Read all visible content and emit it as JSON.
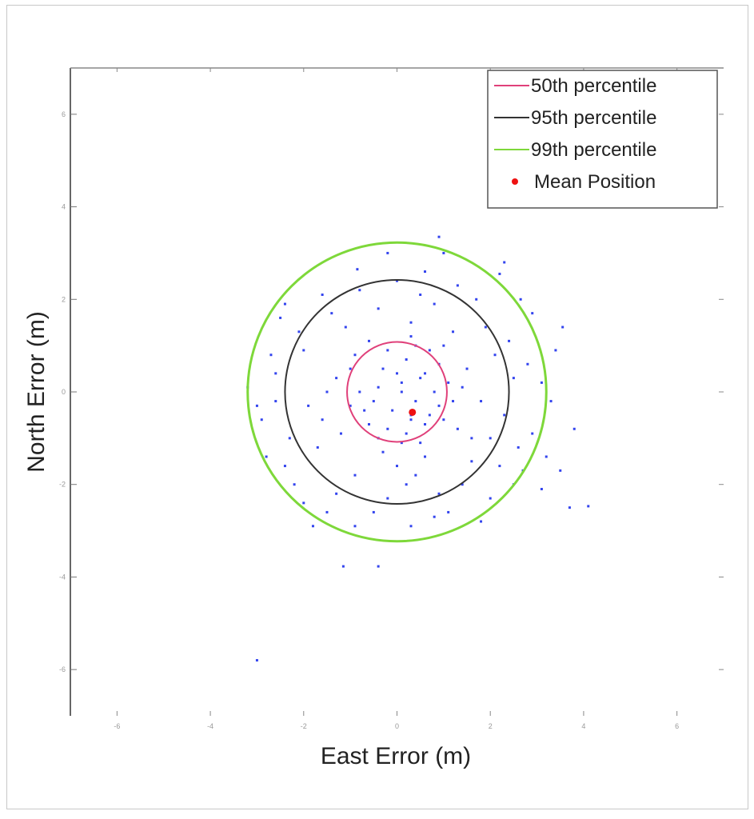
{
  "chart_data": {
    "type": "scatter",
    "title": "",
    "xlabel": "East Error (m)",
    "ylabel": "North Error (m)",
    "xlim": [
      -7,
      7
    ],
    "ylim": [
      -7,
      7
    ],
    "xticks": [
      -6,
      -4,
      -2,
      0,
      2,
      4,
      6
    ],
    "yticks": [
      -6,
      -4,
      -2,
      0,
      2,
      4,
      6
    ],
    "grid": false,
    "legend_position": "top-right",
    "legend": [
      {
        "label": "50th percentile",
        "color": "#e0407a",
        "kind": "line"
      },
      {
        "label": "95th percentile",
        "color": "#333333",
        "kind": "line"
      },
      {
        "label": "99th percentile",
        "color": "#7ed83a",
        "kind": "line"
      },
      {
        "label": "Mean Position",
        "color": "#ee1111",
        "kind": "marker"
      }
    ],
    "circles": [
      {
        "name": "50th percentile",
        "center": [
          0,
          0
        ],
        "radius": 1.07,
        "color": "#e0407a"
      },
      {
        "name": "95th percentile",
        "center": [
          0,
          0
        ],
        "radius": 2.4,
        "color": "#333333"
      },
      {
        "name": "99th percentile",
        "center": [
          0,
          0
        ],
        "radius": 3.2,
        "color": "#7ed83a"
      }
    ],
    "mean_position": [
      0.33,
      -0.44
    ],
    "point_color": "#3344ee",
    "points": [
      [
        -3.0,
        -5.8
      ],
      [
        0.9,
        3.35
      ],
      [
        -1.15,
        -3.77
      ],
      [
        -0.4,
        -3.77
      ],
      [
        4.1,
        -2.47
      ],
      [
        3.7,
        -2.5
      ],
      [
        3.55,
        1.4
      ],
      [
        3.8,
        -0.8
      ],
      [
        -2.4,
        1.9
      ],
      [
        -0.85,
        2.65
      ],
      [
        2.2,
        2.55
      ],
      [
        2.65,
        2.0
      ],
      [
        -2.0,
        -2.4
      ],
      [
        -2.6,
        0.4
      ],
      [
        3.3,
        -0.2
      ],
      [
        3.1,
        -2.1
      ],
      [
        0.8,
        -2.7
      ],
      [
        -1.8,
        -2.9
      ],
      [
        2.7,
        -1.7
      ],
      [
        -2.9,
        -0.6
      ],
      [
        0.1,
        0.2
      ],
      [
        0.3,
        -0.5
      ],
      [
        -0.4,
        0.1
      ],
      [
        0.6,
        0.4
      ],
      [
        -0.2,
        -0.8
      ],
      [
        0.9,
        -0.3
      ],
      [
        0.2,
        0.7
      ],
      [
        -0.7,
        -0.4
      ],
      [
        0.5,
        -1.1
      ],
      [
        1.1,
        0.2
      ],
      [
        -1.0,
        0.5
      ],
      [
        0.4,
        1.0
      ],
      [
        -0.3,
        -1.3
      ],
      [
        1.3,
        -0.8
      ],
      [
        -1.2,
        -0.9
      ],
      [
        0.7,
        0.9
      ],
      [
        -0.6,
        1.1
      ],
      [
        1.5,
        0.5
      ],
      [
        0.0,
        -1.6
      ],
      [
        -1.5,
        0.0
      ],
      [
        1.8,
        -0.2
      ],
      [
        -1.7,
        -1.2
      ],
      [
        0.3,
        1.5
      ],
      [
        1.2,
        1.3
      ],
      [
        -1.1,
        1.4
      ],
      [
        2.0,
        -1.0
      ],
      [
        -0.9,
        -1.8
      ],
      [
        1.6,
        -1.5
      ],
      [
        0.2,
        -2.0
      ],
      [
        -2.0,
        0.9
      ],
      [
        2.1,
        0.8
      ],
      [
        -1.9,
        -0.3
      ],
      [
        0.8,
        1.9
      ],
      [
        -0.4,
        1.8
      ],
      [
        1.9,
        1.4
      ],
      [
        -1.4,
        1.7
      ],
      [
        1.4,
        -2.0
      ],
      [
        -0.2,
        -2.3
      ],
      [
        2.3,
        -0.5
      ],
      [
        -2.3,
        -1.0
      ],
      [
        0.5,
        2.1
      ],
      [
        -2.1,
        1.3
      ],
      [
        2.5,
        0.3
      ],
      [
        0.9,
        -2.2
      ],
      [
        -1.3,
        -2.2
      ],
      [
        2.2,
        -1.6
      ],
      [
        -2.4,
        -1.6
      ],
      [
        1.7,
        2.0
      ],
      [
        -0.8,
        2.2
      ],
      [
        2.6,
        -1.2
      ],
      [
        0.1,
        0.0
      ],
      [
        0.4,
        -0.2
      ],
      [
        -0.1,
        -0.4
      ],
      [
        0.6,
        -0.7
      ],
      [
        0.2,
        -0.9
      ],
      [
        -0.5,
        -0.2
      ],
      [
        0.8,
        0.0
      ],
      [
        0.0,
        0.4
      ],
      [
        -0.3,
        0.5
      ],
      [
        0.5,
        0.3
      ],
      [
        0.3,
        -0.6
      ],
      [
        0.7,
        -0.5
      ],
      [
        -0.6,
        -0.7
      ],
      [
        1.0,
        -0.6
      ],
      [
        -0.2,
        0.9
      ],
      [
        0.9,
        0.6
      ],
      [
        -0.8,
        0.0
      ],
      [
        0.1,
        -1.1
      ],
      [
        1.2,
        -0.2
      ],
      [
        -1.0,
        -0.3
      ],
      [
        0.6,
        -1.4
      ],
      [
        -0.4,
        -1.0
      ],
      [
        1.4,
        0.1
      ],
      [
        -0.9,
        0.8
      ],
      [
        0.3,
        1.2
      ],
      [
        1.0,
        1.0
      ],
      [
        -1.3,
        0.3
      ],
      [
        0.4,
        -1.8
      ],
      [
        1.6,
        -1.0
      ],
      [
        -1.6,
        -0.6
      ],
      [
        2.4,
        1.1
      ],
      [
        -2.6,
        -0.2
      ],
      [
        1.1,
        -2.6
      ],
      [
        -0.5,
        -2.6
      ],
      [
        2.8,
        0.6
      ],
      [
        -2.2,
        -2.0
      ],
      [
        0.0,
        2.4
      ],
      [
        2.9,
        -0.9
      ],
      [
        -2.7,
        0.8
      ],
      [
        1.3,
        2.3
      ],
      [
        -1.6,
        2.1
      ],
      [
        2.0,
        -2.3
      ],
      [
        -0.9,
        -2.9
      ],
      [
        3.1,
        0.2
      ],
      [
        -3.0,
        -0.3
      ],
      [
        0.6,
        2.6
      ],
      [
        2.5,
        -2.0
      ],
      [
        -2.5,
        1.6
      ],
      [
        3.2,
        -1.4
      ],
      [
        1.8,
        -2.8
      ],
      [
        -1.5,
        -2.6
      ],
      [
        0.3,
        -2.9
      ],
      [
        2.9,
        1.7
      ],
      [
        -3.2,
        0.1
      ],
      [
        3.4,
        0.9
      ],
      [
        3.5,
        -1.7
      ],
      [
        -2.8,
        -1.4
      ],
      [
        1.0,
        3.0
      ],
      [
        -0.2,
        3.0
      ],
      [
        2.3,
        2.8
      ]
    ]
  }
}
